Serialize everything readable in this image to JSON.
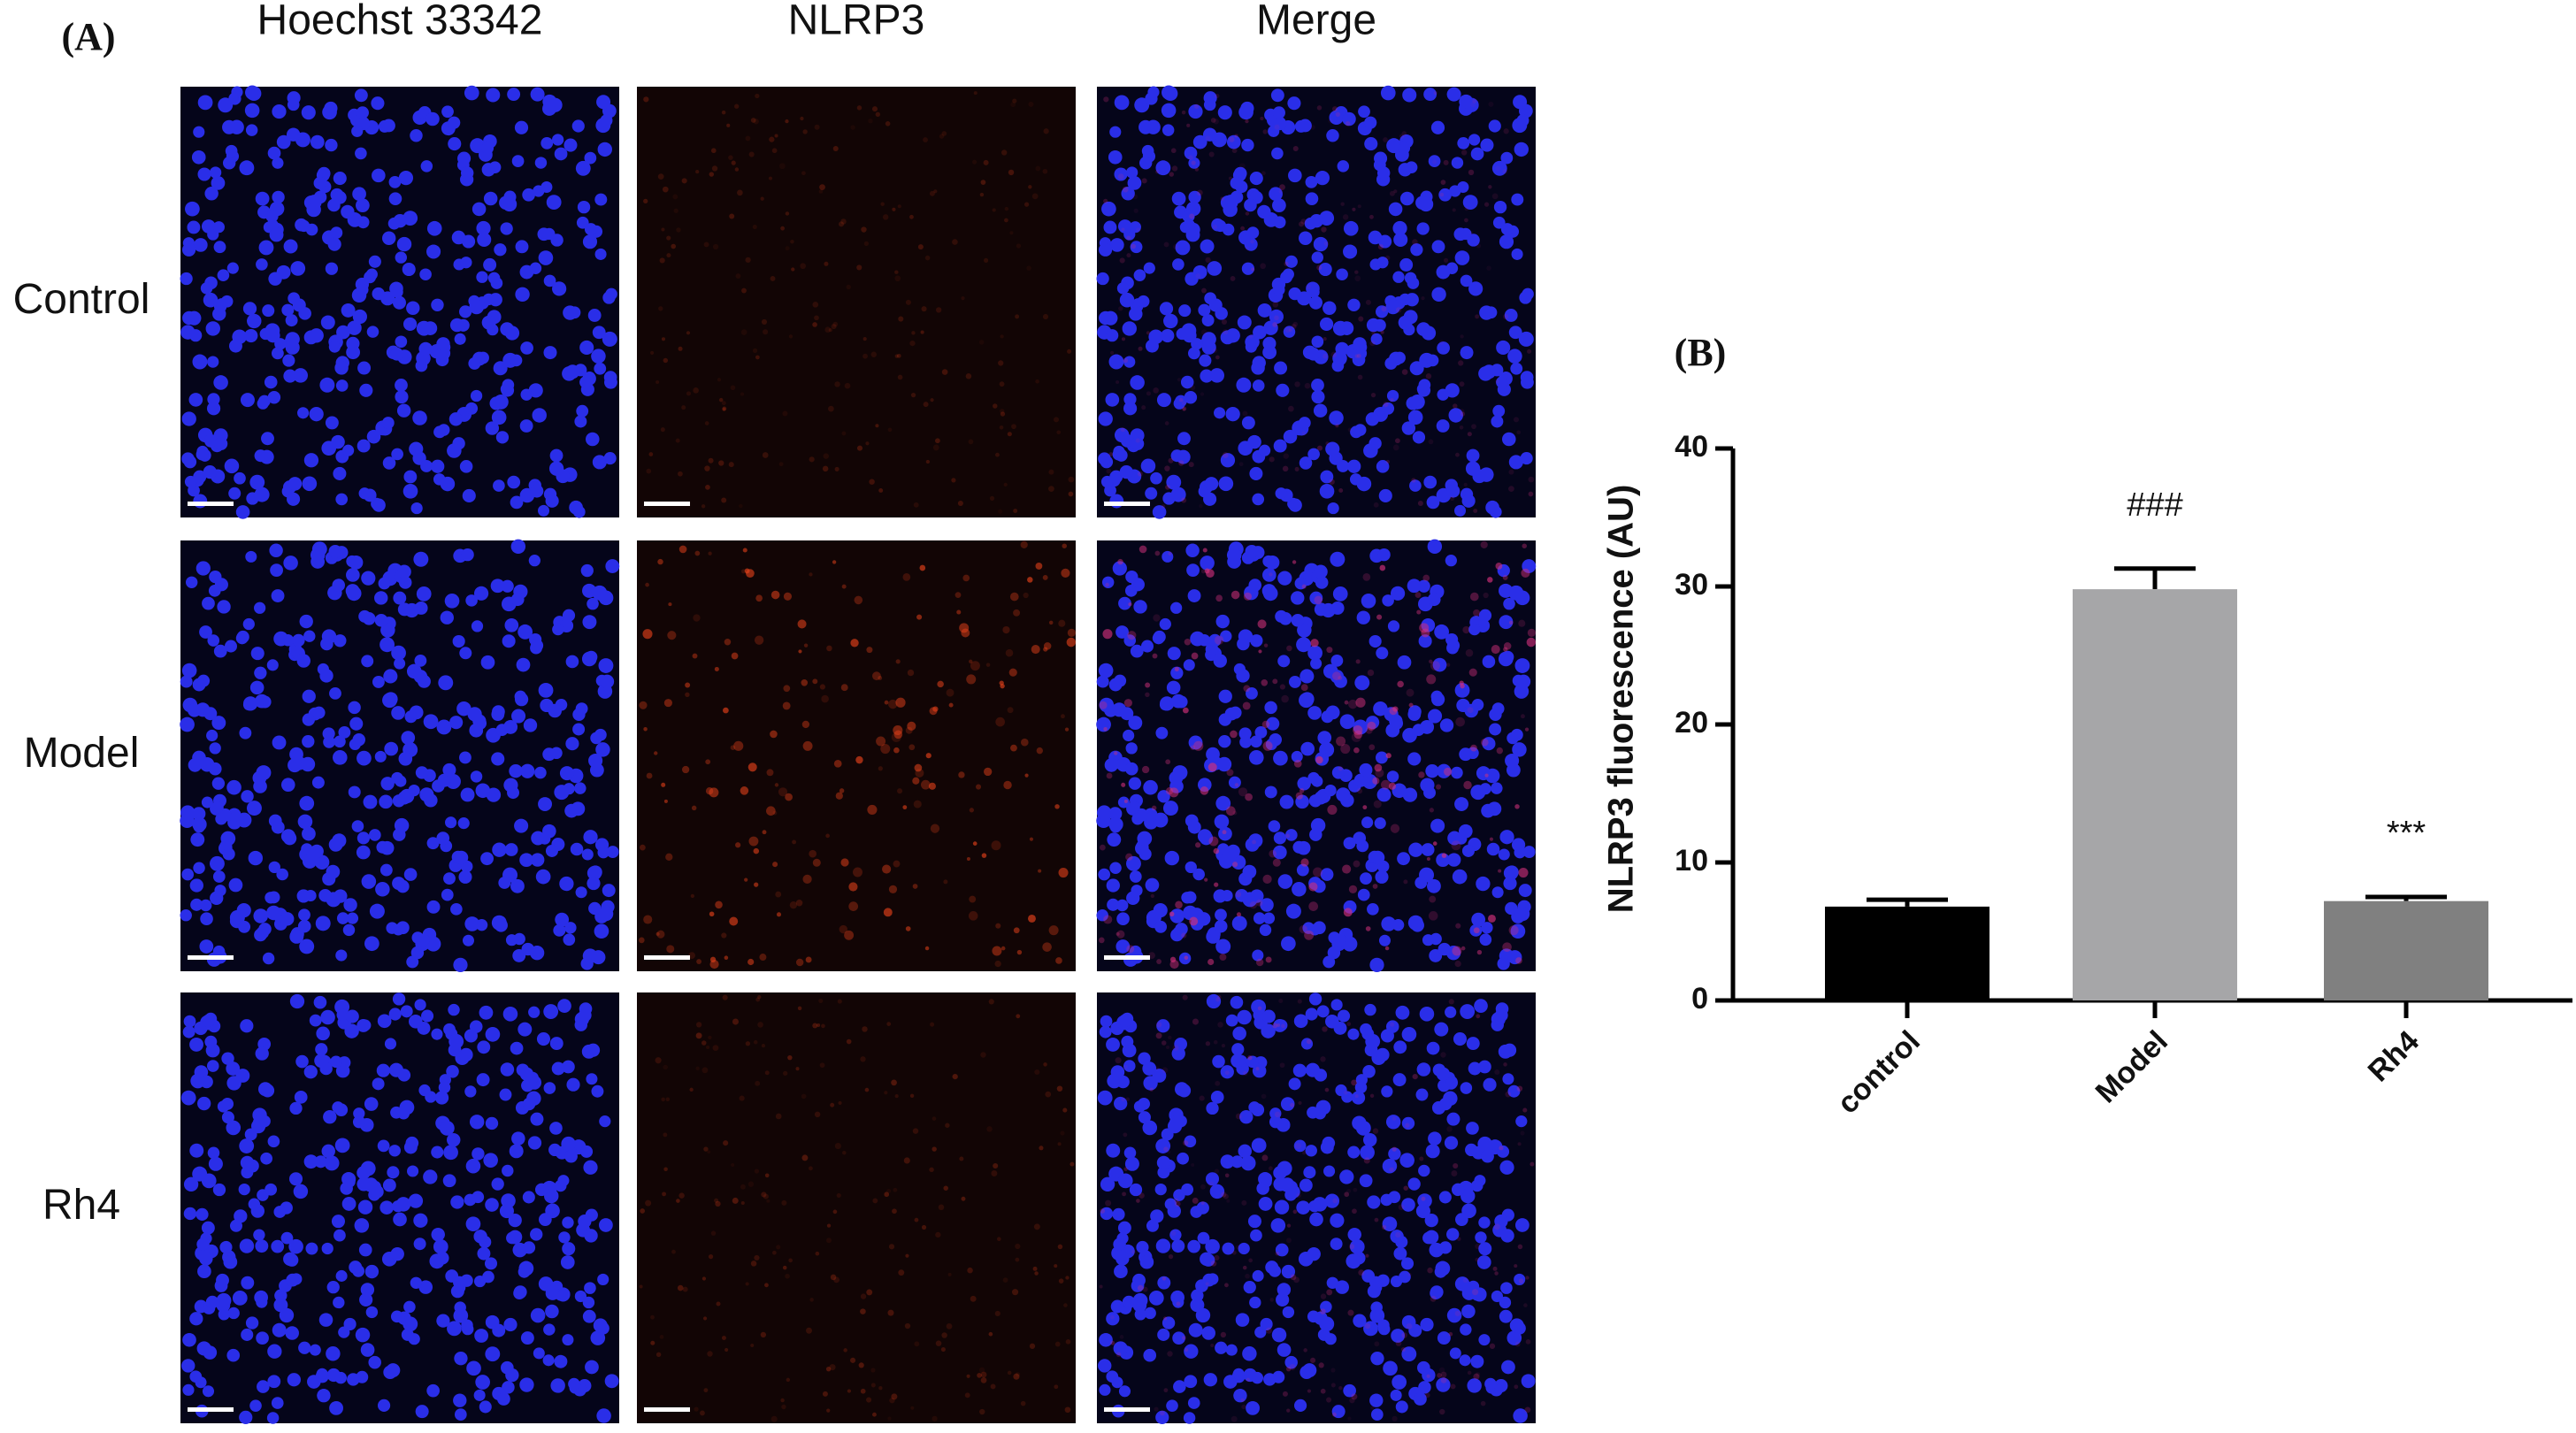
{
  "figure": {
    "panel_a": {
      "label": "(A)",
      "columns": [
        "Hoechst 33342",
        "NLRP3",
        "Merge"
      ],
      "rows": [
        "Control",
        "Model",
        "Rh4"
      ]
    }
  },
  "chart_data": {
    "type": "bar",
    "panel_label": "(B)",
    "y_label": "NLRP3 fluorescence (AU)",
    "categories": [
      "control",
      "Model",
      "Rh4"
    ],
    "values": [
      6.8,
      29.8,
      7.2
    ],
    "errors": [
      0.5,
      1.5,
      0.3
    ],
    "colors": [
      "#000000",
      "#a6a6a8",
      "#808080"
    ],
    "annotations": [
      null,
      "###",
      "***"
    ],
    "ylim": [
      0,
      40
    ],
    "yticks": [
      0,
      10,
      20,
      30,
      40
    ]
  }
}
